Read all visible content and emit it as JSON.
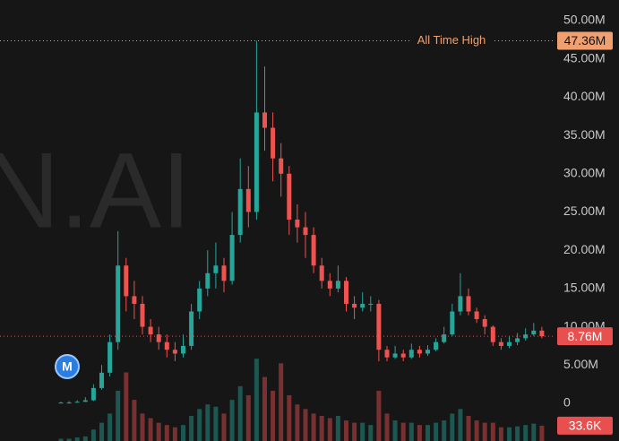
{
  "chart_data": {
    "type": "candlestick",
    "watermark": "N.AI",
    "logo_text": "M",
    "ylim": [
      -4.92,
      52.69
    ],
    "yticks": [
      {
        "value": 50,
        "label": "50.00M"
      },
      {
        "value": 45,
        "label": "45.00M"
      },
      {
        "value": 40,
        "label": "40.00M"
      },
      {
        "value": 35,
        "label": "35.00M"
      },
      {
        "value": 30,
        "label": "30.00M"
      },
      {
        "value": 25,
        "label": "25.00M"
      },
      {
        "value": 20,
        "label": "20.00M"
      },
      {
        "value": 15,
        "label": "15.00M"
      },
      {
        "value": 10,
        "label": "10.00M"
      },
      {
        "value": 5,
        "label": "5.00M"
      },
      0
    ],
    "up_color": "#26a69a",
    "down_color": "#ef5350",
    "ohlc": [
      [
        0.1,
        0.2,
        0.05,
        0.1
      ],
      [
        0.1,
        0.3,
        0.05,
        0.1
      ],
      [
        0.1,
        0.4,
        0.1,
        0.2
      ],
      [
        0.2,
        0.8,
        0.2,
        0.4
      ],
      [
        0.4,
        2.5,
        0.3,
        2
      ],
      [
        2,
        5,
        1.8,
        4
      ],
      [
        4,
        9,
        3.5,
        8
      ],
      [
        8,
        22.5,
        7,
        18
      ],
      [
        18,
        19,
        12,
        14
      ],
      [
        14,
        16,
        11,
        13
      ],
      [
        13,
        14,
        9,
        10
      ],
      [
        10,
        11,
        8,
        9
      ],
      [
        9,
        10,
        7,
        8
      ],
      [
        8,
        9,
        6,
        7
      ],
      [
        7,
        8,
        5.5,
        6.5
      ],
      [
        6.5,
        9,
        6,
        7.5
      ],
      [
        7.5,
        13,
        7,
        12
      ],
      [
        12,
        16,
        11,
        15
      ],
      [
        15,
        20,
        14,
        17
      ],
      [
        17,
        21,
        15,
        18
      ],
      [
        18,
        19,
        14.5,
        16
      ],
      [
        16,
        25,
        15.5,
        22
      ],
      [
        22,
        32,
        21,
        28
      ],
      [
        28,
        31,
        23,
        25
      ],
      [
        25,
        47.36,
        24,
        38
      ],
      [
        38,
        44,
        33,
        36
      ],
      [
        36,
        38,
        29,
        32
      ],
      [
        32,
        34,
        27,
        30
      ],
      [
        30,
        31,
        22,
        24
      ],
      [
        24,
        26,
        21,
        23
      ],
      [
        23,
        25,
        19,
        22
      ],
      [
        22,
        23,
        17,
        18
      ],
      [
        18,
        19,
        15,
        16
      ],
      [
        16,
        17,
        14,
        15
      ],
      [
        15,
        18,
        14.5,
        16
      ],
      [
        16,
        16.5,
        12,
        13
      ],
      [
        13,
        14,
        11,
        12.5
      ],
      [
        12.5,
        14.5,
        12,
        13
      ],
      [
        13,
        14,
        12,
        13
      ],
      [
        13,
        13.5,
        5.5,
        7
      ],
      [
        7,
        7.5,
        5.5,
        6
      ],
      [
        6,
        7.5,
        5.8,
        6.5
      ],
      [
        6.5,
        7,
        5.5,
        6
      ],
      [
        6,
        7.8,
        5.8,
        7
      ],
      [
        7,
        7.5,
        6,
        6.5
      ],
      [
        6.5,
        7.6,
        6.2,
        7
      ],
      [
        7,
        8.5,
        6.8,
        8
      ],
      [
        8,
        10,
        7.8,
        9
      ],
      [
        9,
        13,
        8.8,
        12
      ],
      [
        12,
        17,
        11.5,
        14
      ],
      [
        14,
        15,
        11.5,
        12
      ],
      [
        12,
        12.5,
        10.5,
        11
      ],
      [
        11,
        11.5,
        9,
        10
      ],
      [
        10,
        10.2,
        7.5,
        8
      ],
      [
        8,
        8.5,
        7,
        7.5
      ],
      [
        7.5,
        8.8,
        7.2,
        8
      ],
      [
        8,
        9.2,
        7.6,
        8.5
      ],
      [
        8.5,
        9.8,
        8.2,
        9
      ],
      [
        9,
        10.5,
        8.8,
        9.5
      ],
      [
        9.5,
        10,
        8.5,
        8.76
      ]
    ],
    "volume_ylim": [
      0,
      200
    ],
    "volumes": [
      5,
      5,
      8,
      10,
      25,
      40,
      60,
      110,
      150,
      90,
      60,
      50,
      40,
      35,
      30,
      35,
      55,
      70,
      80,
      75,
      60,
      90,
      120,
      100,
      180,
      140,
      110,
      170,
      100,
      80,
      70,
      60,
      55,
      50,
      55,
      45,
      40,
      40,
      35,
      110,
      60,
      45,
      40,
      40,
      35,
      35,
      40,
      45,
      60,
      70,
      55,
      45,
      40,
      40,
      30,
      30,
      32,
      35,
      38,
      33.6
    ],
    "all_time_high": {
      "text": "All Time High",
      "value": 47.36,
      "label": "47.36M",
      "color": "#f0a070"
    },
    "last_price": {
      "value": 8.76,
      "label": "8.76M",
      "color": "#e85050"
    },
    "last_volume": {
      "value": 33.6,
      "label": "33.6K",
      "color": "#e85050"
    }
  }
}
